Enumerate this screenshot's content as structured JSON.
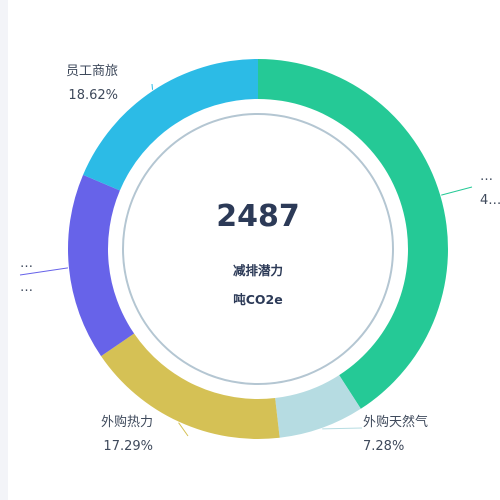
{
  "chart_data": {
    "type": "pie",
    "center": {
      "value": "2487",
      "label": "减排潜力",
      "unit": "吨CO2e"
    },
    "slices": [
      {
        "name": "…",
        "percent_label": "4…",
        "value": 0.409,
        "color": "#25c996"
      },
      {
        "name": "外购天然气",
        "percent_label": "7.28%",
        "value": 0.0728,
        "color": "#b6dce2"
      },
      {
        "name": "外购热力",
        "percent_label": "17.29%",
        "value": 0.1729,
        "color": "#d5c155"
      },
      {
        "name": "…",
        "percent_label": "…",
        "value": 0.1591,
        "color": "#6763e9"
      },
      {
        "name": "员工商旅",
        "percent_label": "18.62%",
        "value": 0.1862,
        "color": "#2cbbe6"
      }
    ],
    "start_angle": "12 o'clock",
    "direction": "clockwise",
    "legend": "none"
  }
}
